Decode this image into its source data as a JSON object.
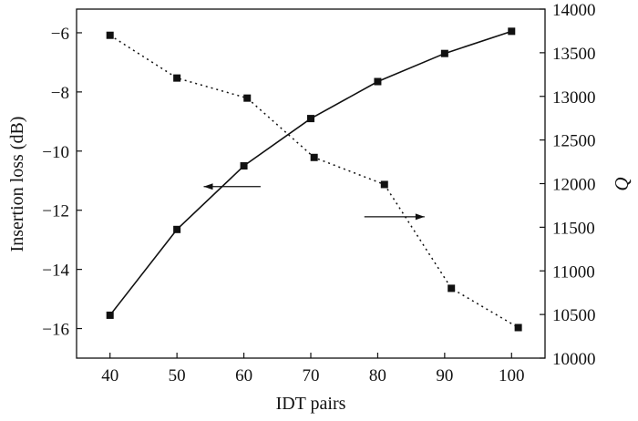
{
  "chart_data": {
    "type": "line",
    "x_axis": {
      "label": "IDT pairs",
      "ticks": [
        40,
        50,
        60,
        70,
        80,
        90,
        100
      ],
      "range": [
        35,
        105
      ]
    },
    "y_left": {
      "label": "Insertion loss (dB)",
      "ticks": [
        -16,
        -14,
        -12,
        -10,
        -8,
        -6
      ],
      "tick_labels": [
        "−16",
        "−14",
        "−12",
        "−10",
        "−8",
        "−6"
      ],
      "range": [
        -17,
        -5.2
      ]
    },
    "y_right": {
      "label": "Q",
      "ticks": [
        10000,
        10500,
        11000,
        11500,
        12000,
        12500,
        13000,
        13500,
        14000
      ],
      "range": [
        10000,
        14000
      ]
    },
    "series": [
      {
        "axis": "left",
        "line_style": "solid",
        "marker": "square",
        "points": [
          {
            "x": 40,
            "y": -15.55
          },
          {
            "x": 50,
            "y": -12.65
          },
          {
            "x": 60,
            "y": -10.5
          },
          {
            "x": 70,
            "y": -8.9
          },
          {
            "x": 80,
            "y": -7.65
          },
          {
            "x": 90,
            "y": -6.7
          },
          {
            "x": 100,
            "y": -5.95
          }
        ]
      },
      {
        "axis": "right",
        "line_style": "dotted",
        "marker": "square",
        "points": [
          {
            "x": 40,
            "y": 13700
          },
          {
            "x": 50,
            "y": 13210
          },
          {
            "x": 60.5,
            "y": 12980
          },
          {
            "x": 70.5,
            "y": 12300
          },
          {
            "x": 81,
            "y": 11990
          },
          {
            "x": 91,
            "y": 10800
          },
          {
            "x": 101,
            "y": 10350
          }
        ]
      }
    ],
    "annotations": [
      {
        "type": "arrow",
        "direction": "left",
        "points_to_axis": "left",
        "x": [
          62.5,
          54
        ],
        "y_axis": "left",
        "y": -11.2
      },
      {
        "type": "arrow",
        "direction": "right",
        "points_to_axis": "right",
        "x": [
          78,
          87
        ],
        "y_axis": "right",
        "y": 11620
      }
    ],
    "grid": false,
    "legend": "none"
  }
}
